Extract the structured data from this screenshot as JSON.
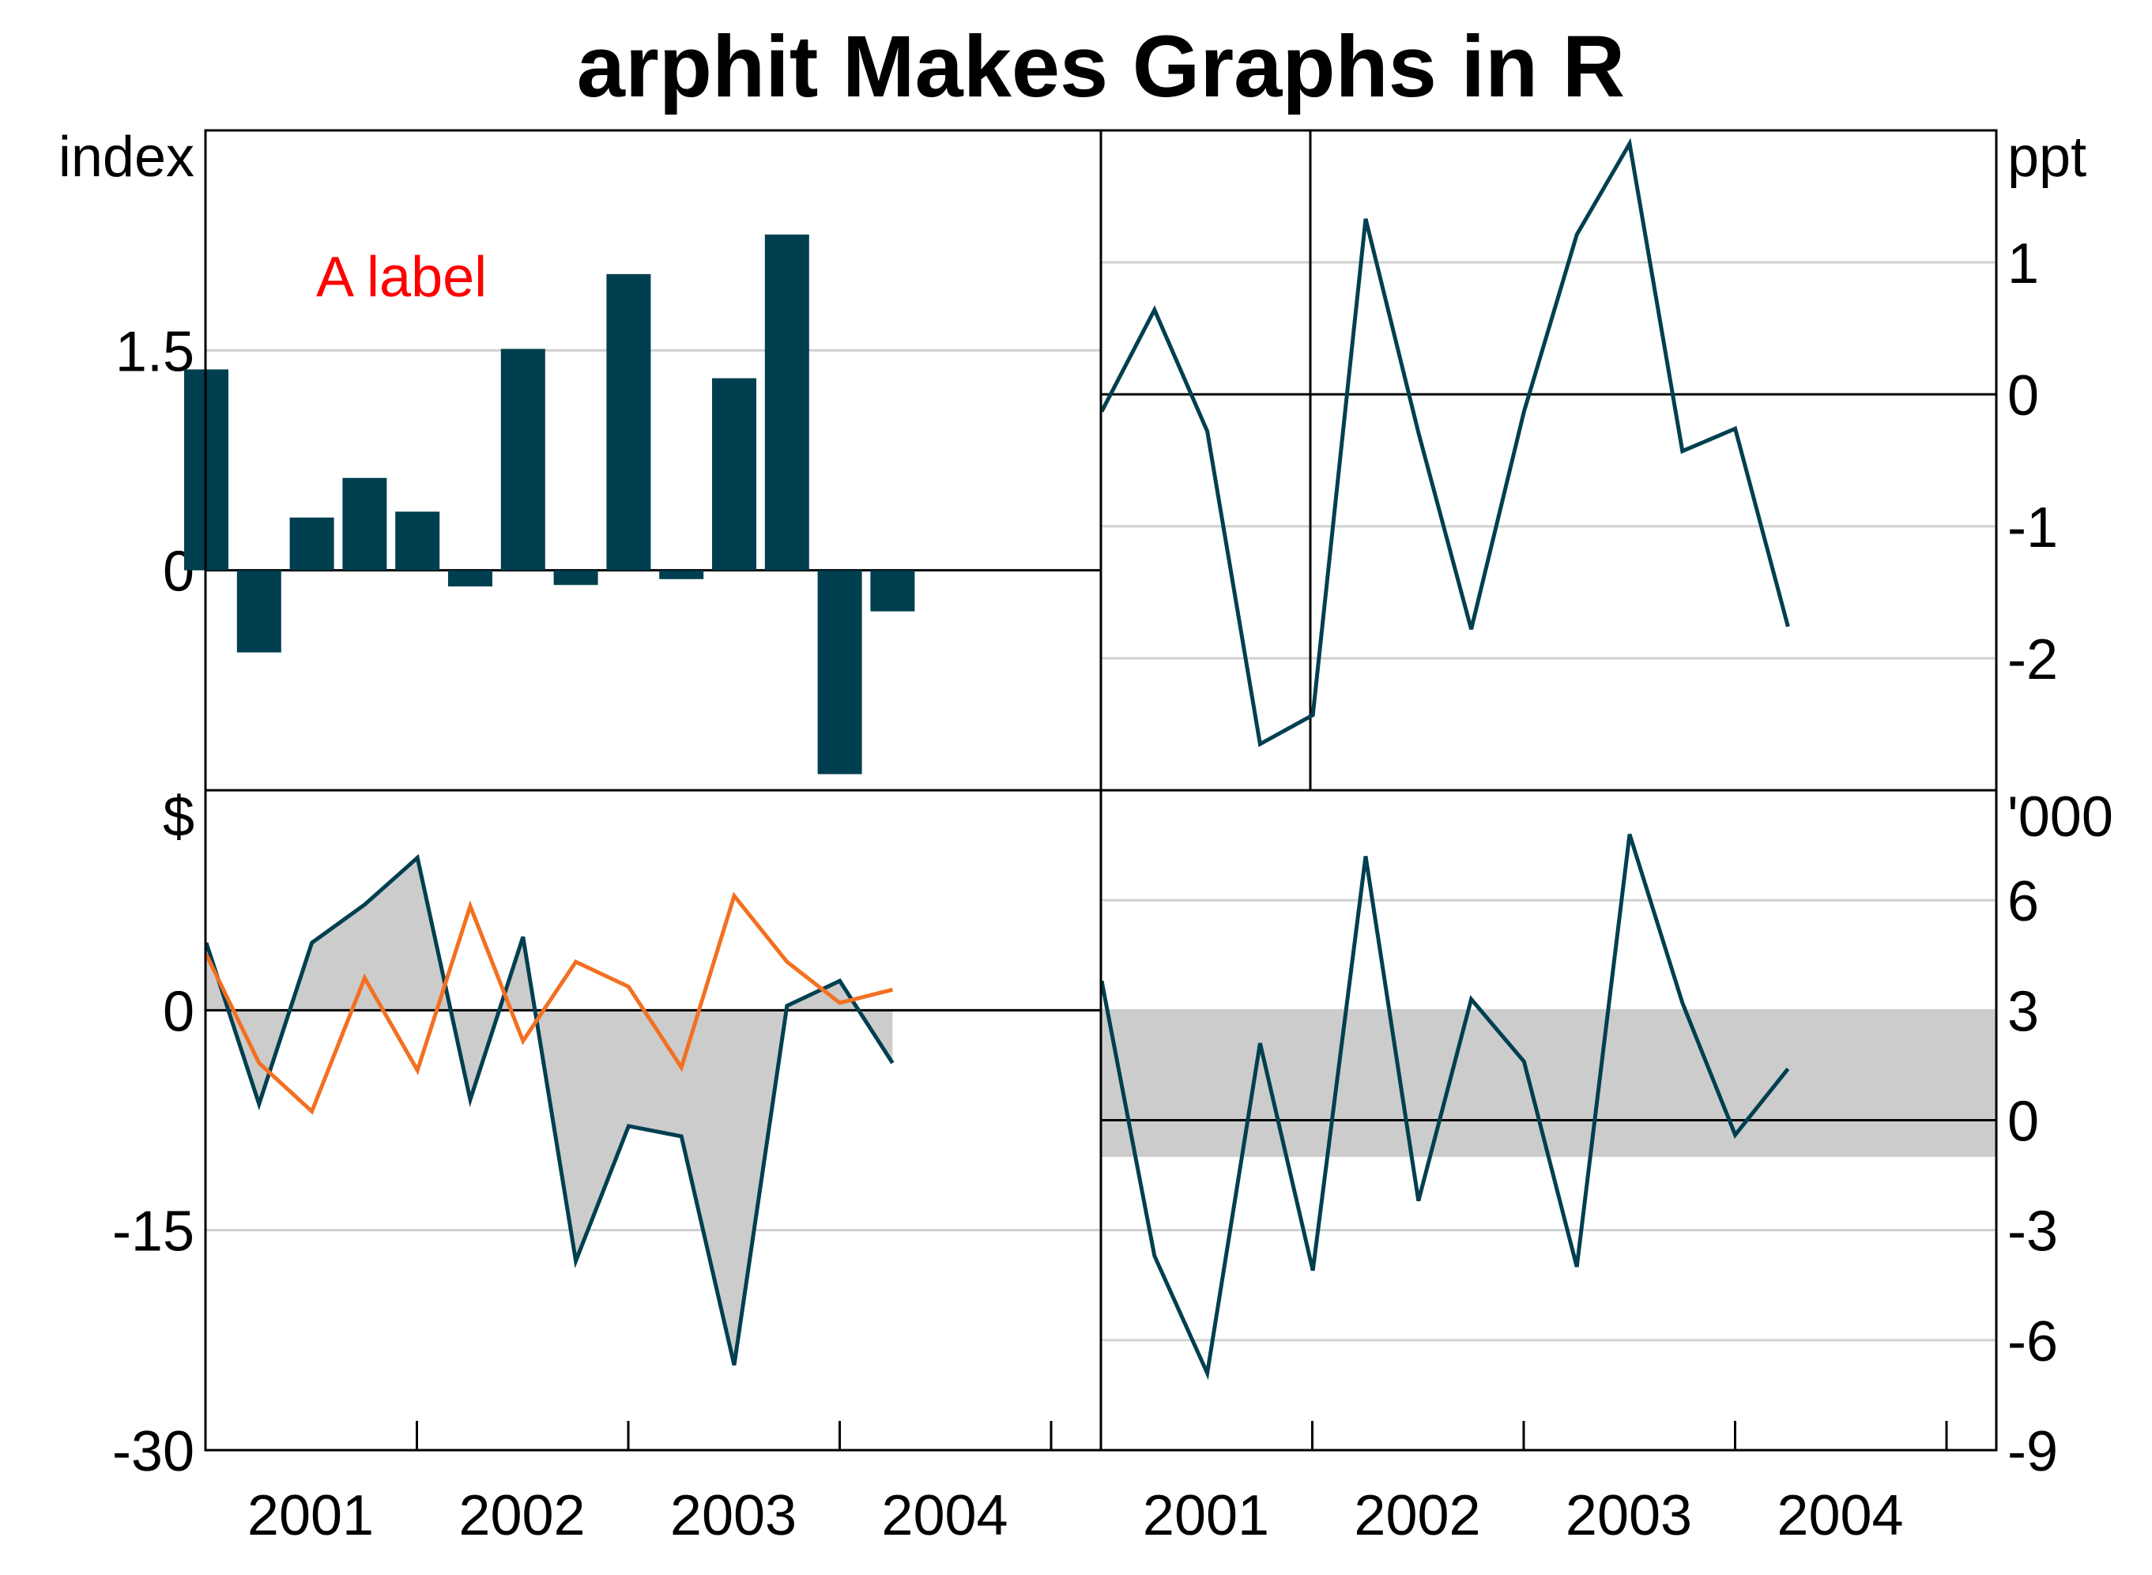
{
  "title": "arphit Makes Graphs in R",
  "colors": {
    "series1": "#003f50",
    "series2": "#f37021",
    "shade": "#cccccc",
    "grid": "#d0d0d0",
    "axis": "#000000",
    "annotation": "#ff0000"
  },
  "x_tick_labels": [
    "2001",
    "2002",
    "2003",
    "2004"
  ],
  "chart_data": [
    {
      "panel": "top-left",
      "type": "bar",
      "unit": "index",
      "x": [
        "2000 Q2",
        "2000 Q3",
        "2000 Q4",
        "2001 Q1",
        "2001 Q2",
        "2001 Q3",
        "2001 Q4",
        "2002 Q1",
        "2002 Q2",
        "2002 Q3",
        "2002 Q4",
        "2003 Q1",
        "2003 Q2",
        "2003 Q3",
        "2003 Q4",
        "2004 Q1",
        "2004 Q2"
      ],
      "values": [
        1.37,
        -0.56,
        0.36,
        0.63,
        0.4,
        -0.11,
        1.51,
        -0.1,
        2.02,
        -0.06,
        1.31,
        2.29,
        -1.39,
        -0.28,
        null,
        null,
        null
      ],
      "ylim": [
        -1.5,
        3.0
      ],
      "y_ticks": [
        "0",
        "1.5"
      ],
      "annotation": "A label",
      "grid": true
    },
    {
      "panel": "top-right",
      "type": "line",
      "unit": "ppt",
      "x": [
        "2000 Q2",
        "2000 Q3",
        "2000 Q4",
        "2001 Q1",
        "2001 Q2",
        "2001 Q3",
        "2001 Q4",
        "2002 Q1",
        "2002 Q2",
        "2002 Q3",
        "2002 Q4",
        "2003 Q1",
        "2003 Q2",
        "2003 Q3"
      ],
      "values": [
        -0.13,
        0.64,
        -0.28,
        -2.65,
        -2.43,
        1.33,
        -0.29,
        -1.78,
        -0.13,
        1.21,
        1.9,
        -0.43,
        -0.26,
        -1.76
      ],
      "ylim": [
        -3.0,
        2.0
      ],
      "y_ticks": [
        "1",
        "0",
        "-1",
        "-2"
      ],
      "vertical_line": "2001",
      "grid": true
    },
    {
      "panel": "bottom-left",
      "type": "line",
      "unit": "$",
      "x": [
        "2000 Q2",
        "2000 Q3",
        "2000 Q4",
        "2001 Q1",
        "2001 Q2",
        "2001 Q3",
        "2001 Q4",
        "2002 Q1",
        "2002 Q2",
        "2002 Q3",
        "2002 Q4",
        "2003 Q1",
        "2003 Q2",
        "2003 Q3"
      ],
      "series": [
        {
          "values": [
            4.6,
            -6.4,
            4.6,
            7.2,
            10.4,
            -6.1,
            5.0,
            -17.1,
            -7.9,
            -8.6,
            -24.2,
            0.3,
            2.0,
            -3.6
          ]
        },
        {
          "values": [
            3.8,
            -3.6,
            -6.9,
            2.2,
            -4.1,
            7.1,
            -2.1,
            3.3,
            1.6,
            -3.9,
            7.8,
            3.3,
            0.5,
            1.4
          ]
        }
      ],
      "shaded_between": "series1 and 0",
      "ylim": [
        -30,
        15
      ],
      "y_ticks": [
        "0",
        "-15",
        "-30"
      ],
      "grid": true
    },
    {
      "panel": "bottom-right",
      "type": "line",
      "unit": "'000",
      "x": [
        "2000 Q2",
        "2000 Q3",
        "2000 Q4",
        "2001 Q1",
        "2001 Q2",
        "2001 Q3",
        "2001 Q4",
        "2002 Q1",
        "2002 Q2",
        "2002 Q3",
        "2002 Q4",
        "2003 Q1",
        "2003 Q2",
        "2003 Q3"
      ],
      "values": [
        3.8,
        -3.7,
        -6.9,
        2.1,
        -4.1,
        7.2,
        -2.2,
        3.3,
        1.6,
        -4.0,
        7.8,
        3.2,
        -0.4,
        1.4
      ],
      "shaded_band": [
        -1.0,
        3.0
      ],
      "ylim": [
        -9,
        9
      ],
      "y_ticks": [
        "6",
        "3",
        "0",
        "-3",
        "-6",
        "-9"
      ],
      "grid": true
    }
  ]
}
